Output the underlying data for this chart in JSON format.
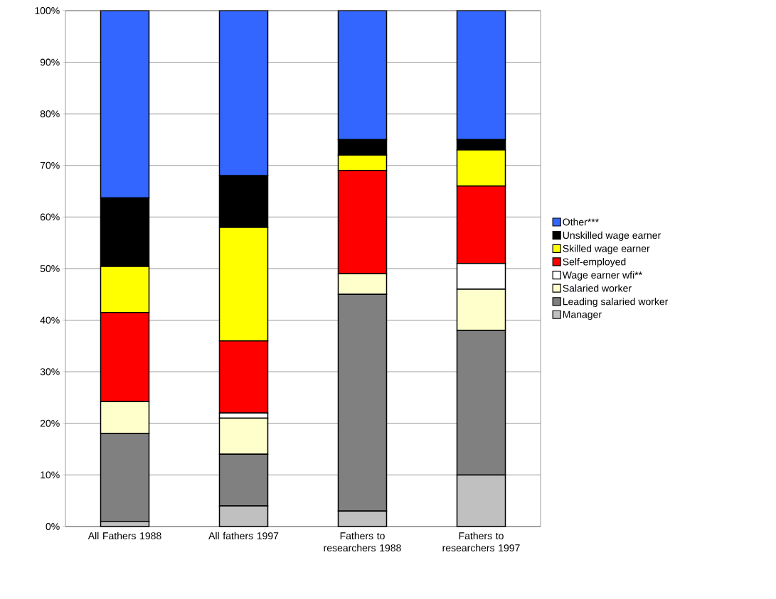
{
  "chart_data": {
    "type": "bar",
    "stacked": true,
    "categories": [
      "All Fathers 1988",
      "All fathers 1997",
      "Fathers to researchers 1988",
      "Fathers to researchers 1997"
    ],
    "series": [
      {
        "name": "Manager",
        "color": "#c0c0c0",
        "values": [
          1,
          4,
          3,
          10
        ]
      },
      {
        "name": "Leading salaried worker",
        "color": "#808080",
        "values": [
          17,
          10,
          42,
          28
        ]
      },
      {
        "name": "Salaried worker",
        "color": "#ffffcc",
        "values": [
          6.2,
          7,
          4,
          8
        ]
      },
      {
        "name": "Wage earner wfi**",
        "color": "#ffffff",
        "values": [
          0,
          1,
          0,
          5
        ]
      },
      {
        "name": "Self-employed",
        "color": "#ff0000",
        "values": [
          17.3,
          14,
          20,
          15
        ]
      },
      {
        "name": "Skilled wage earner",
        "color": "#ffff00",
        "values": [
          8.9,
          22,
          3,
          7
        ]
      },
      {
        "name": "Unskilled wage earner",
        "color": "#000000",
        "values": [
          13.3,
          10,
          3,
          2
        ]
      },
      {
        "name": "Other***",
        "color": "#3366ff",
        "values": [
          36.3,
          32,
          25,
          25
        ]
      }
    ],
    "ylim": [
      0,
      100
    ],
    "yticks": [
      {
        "value": 0,
        "label": "0%"
      },
      {
        "value": 10,
        "label": "10%"
      },
      {
        "value": 20,
        "label": "20%"
      },
      {
        "value": 30,
        "label": "30%"
      },
      {
        "value": 40,
        "label": "40%"
      },
      {
        "value": 50,
        "label": "50%"
      },
      {
        "value": 60,
        "label": "60%"
      },
      {
        "value": 70,
        "label": "70%"
      },
      {
        "value": 80,
        "label": "80%"
      },
      {
        "value": 90,
        "label": "90%"
      },
      {
        "value": 100,
        "label": "100%"
      }
    ],
    "grid": "y",
    "legend": "right"
  }
}
